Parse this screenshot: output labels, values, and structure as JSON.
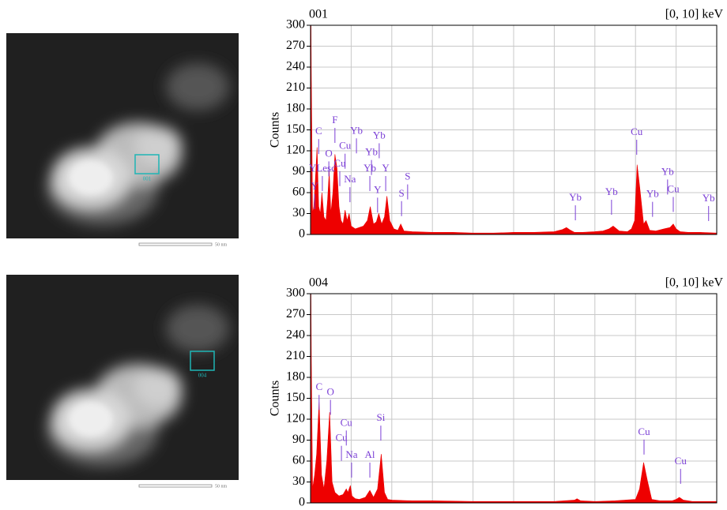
{
  "chart_data": [
    {
      "type": "area",
      "title": "001",
      "subtitle": "[0, 10] keV",
      "ylabel": "Counts",
      "color": "#ee0000",
      "label_color": "#7b3fd6",
      "grid": true,
      "xlim": [
        0,
        10
      ],
      "xticks": [
        0,
        1,
        2,
        3,
        4,
        5,
        6,
        7,
        8,
        9,
        10
      ],
      "ylim": [
        0,
        300
      ],
      "yticks": [
        0,
        30,
        60,
        90,
        120,
        150,
        180,
        210,
        240,
        270,
        300
      ],
      "x": [
        0,
        0.02,
        0.05,
        0.08,
        0.12,
        0.16,
        0.2,
        0.24,
        0.28,
        0.33,
        0.38,
        0.42,
        0.46,
        0.5,
        0.55,
        0.6,
        0.65,
        0.7,
        0.75,
        0.8,
        0.85,
        0.9,
        0.95,
        1.0,
        1.05,
        1.1,
        1.2,
        1.3,
        1.4,
        1.47,
        1.55,
        1.62,
        1.68,
        1.75,
        1.82,
        1.88,
        1.95,
        2.05,
        2.15,
        2.22,
        2.3,
        2.5,
        3.0,
        3.5,
        4.0,
        4.5,
        5.0,
        5.5,
        6.0,
        6.2,
        6.3,
        6.4,
        6.5,
        6.7,
        7.0,
        7.2,
        7.35,
        7.45,
        7.6,
        7.8,
        7.9,
        7.98,
        8.04,
        8.1,
        8.2,
        8.26,
        8.35,
        8.5,
        8.7,
        8.85,
        8.93,
        9.0,
        9.1,
        9.3,
        9.6,
        10.0
      ],
      "values": [
        400,
        220,
        30,
        40,
        80,
        125,
        40,
        30,
        60,
        25,
        20,
        50,
        90,
        30,
        60,
        115,
        95,
        40,
        20,
        15,
        35,
        20,
        30,
        12,
        10,
        8,
        10,
        12,
        20,
        40,
        15,
        18,
        30,
        15,
        25,
        55,
        20,
        8,
        6,
        15,
        5,
        4,
        3,
        3,
        2,
        2,
        3,
        3,
        4,
        7,
        10,
        6,
        3,
        3,
        4,
        5,
        8,
        12,
        5,
        4,
        8,
        20,
        100,
        70,
        15,
        20,
        6,
        5,
        8,
        10,
        15,
        8,
        4,
        3,
        3,
        2
      ],
      "peak_labels": [
        {
          "label": "Y",
          "x": 0.1,
          "y": 68
        },
        {
          "label": "YLesc",
          "x": 0.29,
          "y": 94
        },
        {
          "label": "C",
          "x": 0.2,
          "y": 147
        },
        {
          "label": "F",
          "x": 0.6,
          "y": 163
        },
        {
          "label": "O",
          "x": 0.45,
          "y": 115
        },
        {
          "label": "Cu",
          "x": 0.85,
          "y": 126
        },
        {
          "label": "Cu",
          "x": 0.72,
          "y": 101
        },
        {
          "label": "Na",
          "x": 0.97,
          "y": 78
        },
        {
          "label": "Yb",
          "x": 1.13,
          "y": 148
        },
        {
          "label": "Yb",
          "x": 1.69,
          "y": 141
        },
        {
          "label": "Yb",
          "x": 1.5,
          "y": 117
        },
        {
          "label": "Yb",
          "x": 1.46,
          "y": 94
        },
        {
          "label": "Y",
          "x": 1.85,
          "y": 94
        },
        {
          "label": "Y",
          "x": 1.65,
          "y": 63
        },
        {
          "label": "S",
          "x": 2.39,
          "y": 82
        },
        {
          "label": "S",
          "x": 2.24,
          "y": 58
        },
        {
          "label": "Yb",
          "x": 6.52,
          "y": 52
        },
        {
          "label": "Yb",
          "x": 7.41,
          "y": 60
        },
        {
          "label": "Cu",
          "x": 8.03,
          "y": 146
        },
        {
          "label": "Yb",
          "x": 8.79,
          "y": 89
        },
        {
          "label": "Yb",
          "x": 8.42,
          "y": 57
        },
        {
          "label": "Cu",
          "x": 8.93,
          "y": 64
        },
        {
          "label": "Yb",
          "x": 9.8,
          "y": 51
        }
      ]
    },
    {
      "type": "area",
      "title": "004",
      "subtitle": "[0, 10] keV",
      "ylabel": "Counts",
      "color": "#ee0000",
      "label_color": "#7b3fd6",
      "grid": true,
      "xlim": [
        0,
        10
      ],
      "xticks": [
        0,
        1,
        2,
        3,
        4,
        5,
        6,
        7,
        8,
        9,
        10
      ],
      "ylim": [
        0,
        300
      ],
      "yticks": [
        0,
        30,
        60,
        90,
        120,
        150,
        180,
        210,
        240,
        270,
        300
      ],
      "x": [
        0,
        0.02,
        0.05,
        0.1,
        0.15,
        0.21,
        0.27,
        0.33,
        0.4,
        0.47,
        0.53,
        0.6,
        0.7,
        0.8,
        0.88,
        0.92,
        0.98,
        1.02,
        1.1,
        1.2,
        1.35,
        1.46,
        1.55,
        1.65,
        1.74,
        1.82,
        1.9,
        2.0,
        2.5,
        3.0,
        4.0,
        5.0,
        6.0,
        6.5,
        6.56,
        6.65,
        7.0,
        7.5,
        8.0,
        8.1,
        8.2,
        8.3,
        8.4,
        8.6,
        8.9,
        9.0,
        9.08,
        9.18,
        9.4,
        10.0
      ],
      "values": [
        400,
        200,
        20,
        40,
        70,
        145,
        40,
        20,
        60,
        130,
        30,
        15,
        10,
        12,
        20,
        15,
        25,
        10,
        6,
        5,
        8,
        18,
        8,
        20,
        70,
        15,
        5,
        4,
        3,
        3,
        2,
        2,
        2,
        4,
        6,
        3,
        2,
        3,
        5,
        20,
        58,
        30,
        5,
        3,
        3,
        5,
        8,
        4,
        2,
        2
      ],
      "peak_labels": [
        {
          "label": "C",
          "x": 0.21,
          "y": 165
        },
        {
          "label": "O",
          "x": 0.49,
          "y": 158
        },
        {
          "label": "Cu",
          "x": 0.88,
          "y": 114
        },
        {
          "label": "Cu",
          "x": 0.76,
          "y": 92
        },
        {
          "label": "Na",
          "x": 1.01,
          "y": 68
        },
        {
          "label": "Al",
          "x": 1.46,
          "y": 68
        },
        {
          "label": "Si",
          "x": 1.73,
          "y": 121
        },
        {
          "label": "Cu",
          "x": 8.21,
          "y": 101
        },
        {
          "label": "Cu",
          "x": 9.11,
          "y": 59
        }
      ]
    }
  ],
  "images": [
    {
      "region_label": "001",
      "scale_bar": "50 nm"
    },
    {
      "region_label": "004",
      "scale_bar": "50 nm"
    }
  ]
}
